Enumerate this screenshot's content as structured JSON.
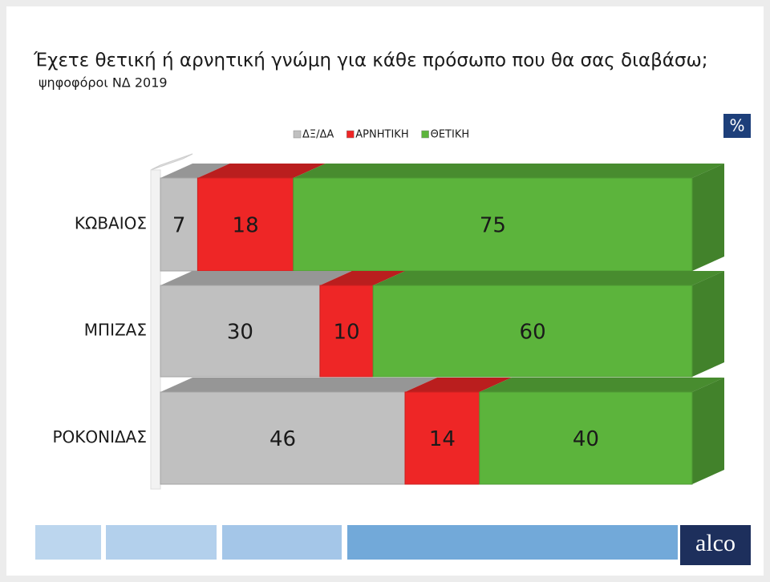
{
  "chart_data": {
    "type": "stacked-bar-3d",
    "title": "Έχετε θετική ή αρνητική γνώμη για κάθε πρόσωπο που θα σας διαβάσω;",
    "subtitle": "ψηφοφόροι ΝΔ 2019",
    "unit": "%",
    "logo": "alco",
    "categories": [
      "ΚΩΒΑΙΟΣ",
      "ΜΠΙΖΑΣ",
      "ΡΟΚΟΝΙΔΑΣ"
    ],
    "series": [
      {
        "name": "ΔΞ/ΔΑ",
        "color": "#c0c0c0",
        "values": [
          7,
          30,
          46
        ]
      },
      {
        "name": "ΑΡΝΗΤΙΚΗ",
        "color": "#ee2626",
        "values": [
          18,
          10,
          14
        ]
      },
      {
        "name": "ΘΕΤΙΚΗ",
        "color": "#5cb43c",
        "values": [
          75,
          60,
          40
        ]
      }
    ],
    "xlim": [
      0,
      100
    ],
    "legend": "top"
  }
}
